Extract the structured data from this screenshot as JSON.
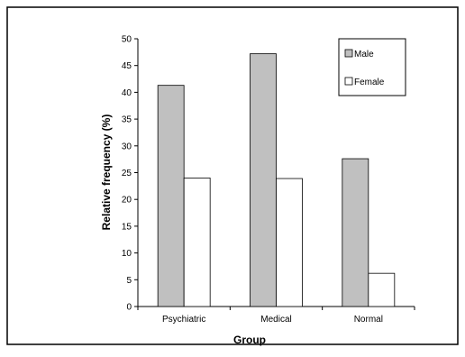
{
  "chart_data": {
    "type": "bar",
    "title": "",
    "xlabel": "Group",
    "ylabel": "Relative frequency (%)",
    "categories": [
      "Psychiatric",
      "Medical",
      "Normal"
    ],
    "series": [
      {
        "name": "Male",
        "values": [
          41.3,
          47.2,
          27.6
        ],
        "color": "#c0c0c0"
      },
      {
        "name": "Female",
        "values": [
          24.0,
          23.9,
          6.2
        ],
        "color": "#ffffff"
      }
    ],
    "ylim": [
      0,
      50
    ],
    "yticks": [
      0,
      5,
      10,
      15,
      20,
      25,
      30,
      35,
      40,
      45,
      50
    ],
    "grid": false,
    "legend_position": "top-right"
  }
}
